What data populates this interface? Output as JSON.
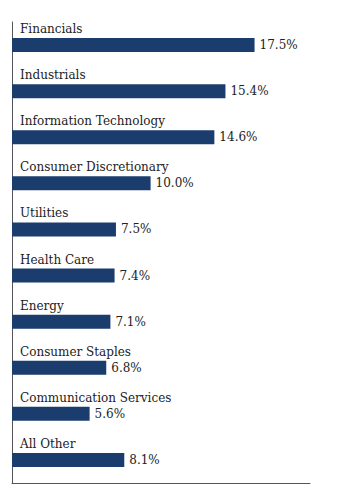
{
  "chart_data": {
    "type": "bar",
    "orientation": "horizontal",
    "categories": [
      "Financials",
      "Industrials",
      "Information Technology",
      "Consumer Discretionary",
      "Utilities",
      "Health Care",
      "Energy",
      "Consumer Staples",
      "Communication Services",
      "All Other"
    ],
    "values": [
      17.5,
      15.4,
      14.6,
      10.0,
      7.5,
      7.4,
      7.1,
      6.8,
      5.6,
      8.1
    ],
    "value_labels": [
      "17.5%",
      "15.4%",
      "14.6%",
      "10.0%",
      "7.5%",
      "7.4%",
      "7.1%",
      "6.8%",
      "5.6%",
      "8.1%"
    ],
    "color": "#1a3d6e",
    "xlim": [
      0,
      21.5
    ],
    "data_labels": true,
    "tick_labels": false,
    "grid": false
  }
}
